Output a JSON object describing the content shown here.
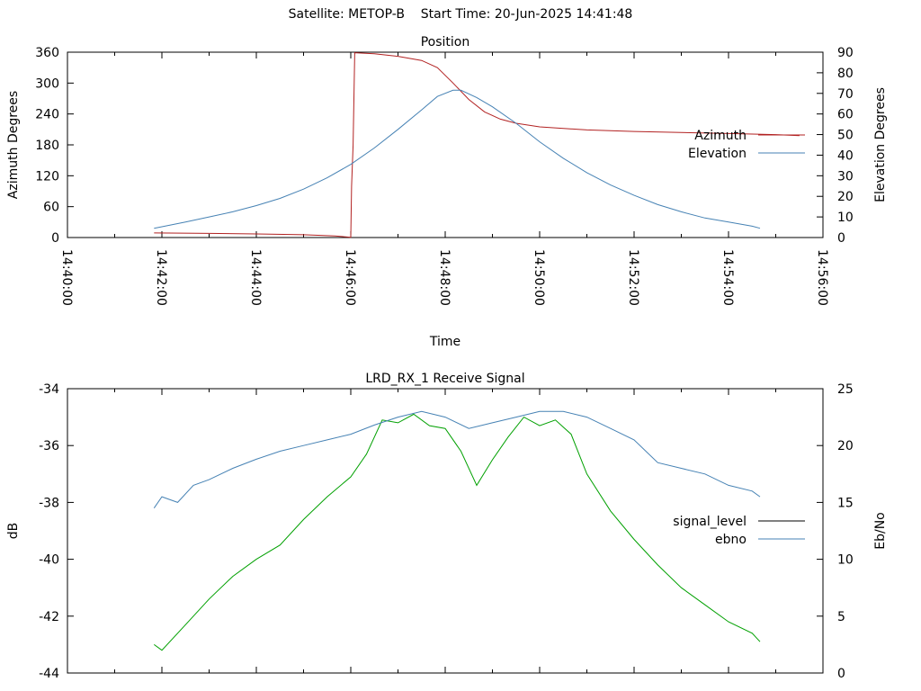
{
  "page": {
    "title": "Satellite: METOP-B    Start Time: 20-Jun-2025 14:41:48"
  },
  "chart_data": [
    {
      "type": "line",
      "title": "Position",
      "xlabel": "Time",
      "ylabel": "Azimuth Degrees",
      "y2label": "Elevation Degrees",
      "xlim": [
        "14:40:00",
        "14:56:00"
      ],
      "ylim": [
        0,
        360
      ],
      "y2lim": [
        0,
        90
      ],
      "x_ticks": [
        "14:40:00",
        "14:42:00",
        "14:44:00",
        "14:46:00",
        "14:48:00",
        "14:50:00",
        "14:52:00",
        "14:54:00",
        "14:56:00"
      ],
      "y_ticks": [
        "0",
        "60",
        "120",
        "180",
        "240",
        "300",
        "360"
      ],
      "y2_ticks": [
        "0",
        "10",
        "20",
        "30",
        "40",
        "50",
        "60",
        "70",
        "80",
        "90"
      ],
      "legend_position": "right",
      "grid": false,
      "series": [
        {
          "name": "Azimuth",
          "axis": "left",
          "color": "#b22222",
          "points": [
            [
              "14:41:50",
              9
            ],
            [
              "14:43:00",
              8
            ],
            [
              "14:44:00",
              7
            ],
            [
              "14:45:00",
              5.5
            ],
            [
              "14:45:40",
              3
            ],
            [
              "14:46:00",
              0.5
            ],
            [
              "14:46:01",
              100
            ],
            [
              "14:46:03",
              180
            ],
            [
              "14:46:05",
              359
            ],
            [
              "14:46:30",
              357
            ],
            [
              "14:47:00",
              352
            ],
            [
              "14:47:30",
              344
            ],
            [
              "14:47:50",
              330
            ],
            [
              "14:48:10",
              300
            ],
            [
              "14:48:30",
              268
            ],
            [
              "14:48:50",
              244
            ],
            [
              "14:49:10",
              230
            ],
            [
              "14:49:30",
              222
            ],
            [
              "14:50:00",
              215
            ],
            [
              "14:51:00",
              209
            ],
            [
              "14:52:00",
              206
            ],
            [
              "14:53:00",
              204
            ],
            [
              "14:54:00",
              202
            ],
            [
              "14:55:00",
              200
            ],
            [
              "14:55:30",
              198
            ]
          ]
        },
        {
          "name": "Elevation",
          "axis": "right",
          "color": "#4682b4",
          "points": [
            [
              "14:41:50",
              4.5
            ],
            [
              "14:42:30",
              7.5
            ],
            [
              "14:43:00",
              10
            ],
            [
              "14:43:30",
              12.5
            ],
            [
              "14:44:00",
              15.5
            ],
            [
              "14:44:30",
              19
            ],
            [
              "14:45:00",
              23.5
            ],
            [
              "14:45:30",
              29
            ],
            [
              "14:46:00",
              35.5
            ],
            [
              "14:46:30",
              43.5
            ],
            [
              "14:47:00",
              52.5
            ],
            [
              "14:47:30",
              62
            ],
            [
              "14:47:50",
              68.5
            ],
            [
              "14:48:10",
              71.5
            ],
            [
              "14:48:20",
              71.5
            ],
            [
              "14:48:40",
              68
            ],
            [
              "14:49:00",
              63.5
            ],
            [
              "14:49:30",
              55.5
            ],
            [
              "14:50:00",
              46.5
            ],
            [
              "14:50:30",
              38.5
            ],
            [
              "14:51:00",
              31.5
            ],
            [
              "14:51:30",
              25.5
            ],
            [
              "14:52:00",
              20.5
            ],
            [
              "14:52:30",
              16
            ],
            [
              "14:53:00",
              12.5
            ],
            [
              "14:53:30",
              9.5
            ],
            [
              "14:54:00",
              7.5
            ],
            [
              "14:54:30",
              5.5
            ],
            [
              "14:54:40",
              4.5
            ]
          ]
        }
      ]
    },
    {
      "type": "line",
      "title": "LRD_RX_1 Receive Signal",
      "ylabel": "dB",
      "y2label": "Eb/No",
      "xlim": [
        "14:40:00",
        "14:56:00"
      ],
      "ylim": [
        -44,
        -34
      ],
      "y2lim": [
        0,
        25
      ],
      "y_ticks": [
        "-44",
        "-42",
        "-40",
        "-38",
        "-36",
        "-34"
      ],
      "y2_ticks": [
        "0",
        "5",
        "10",
        "15",
        "20",
        "25"
      ],
      "legend_position": "right",
      "grid": false,
      "series": [
        {
          "name": "signal_level",
          "axis": "left",
          "color": "#00a000",
          "legend_swatch_color": "#000000",
          "points": [
            [
              "14:41:50",
              -43.0
            ],
            [
              "14:42:00",
              -43.2
            ],
            [
              "14:42:30",
              -42.3
            ],
            [
              "14:43:00",
              -41.4
            ],
            [
              "14:43:30",
              -40.6
            ],
            [
              "14:44:00",
              -40.0
            ],
            [
              "14:44:30",
              -39.5
            ],
            [
              "14:45:00",
              -38.6
            ],
            [
              "14:45:30",
              -37.8
            ],
            [
              "14:46:00",
              -37.1
            ],
            [
              "14:46:20",
              -36.3
            ],
            [
              "14:46:40",
              -35.1
            ],
            [
              "14:47:00",
              -35.2
            ],
            [
              "14:47:20",
              -34.9
            ],
            [
              "14:47:40",
              -35.3
            ],
            [
              "14:48:00",
              -35.4
            ],
            [
              "14:48:20",
              -36.2
            ],
            [
              "14:48:40",
              -37.4
            ],
            [
              "14:49:00",
              -36.5
            ],
            [
              "14:49:20",
              -35.7
            ],
            [
              "14:49:40",
              -35.0
            ],
            [
              "14:50:00",
              -35.3
            ],
            [
              "14:50:20",
              -35.1
            ],
            [
              "14:50:40",
              -35.6
            ],
            [
              "14:51:00",
              -37.0
            ],
            [
              "14:51:30",
              -38.3
            ],
            [
              "14:52:00",
              -39.3
            ],
            [
              "14:52:30",
              -40.2
            ],
            [
              "14:53:00",
              -41.0
            ],
            [
              "14:53:30",
              -41.6
            ],
            [
              "14:54:00",
              -42.2
            ],
            [
              "14:54:30",
              -42.6
            ],
            [
              "14:54:40",
              -42.9
            ]
          ]
        },
        {
          "name": "ebno",
          "axis": "right",
          "color": "#4682b4",
          "points": [
            [
              "14:41:50",
              14.5
            ],
            [
              "14:42:00",
              15.5
            ],
            [
              "14:42:20",
              15.0
            ],
            [
              "14:42:40",
              16.5
            ],
            [
              "14:43:00",
              17.0
            ],
            [
              "14:43:30",
              18.0
            ],
            [
              "14:44:00",
              18.8
            ],
            [
              "14:44:30",
              19.5
            ],
            [
              "14:45:00",
              20.0
            ],
            [
              "14:45:30",
              20.5
            ],
            [
              "14:46:00",
              21.0
            ],
            [
              "14:46:30",
              21.8
            ],
            [
              "14:47:00",
              22.5
            ],
            [
              "14:47:30",
              23.0
            ],
            [
              "14:48:00",
              22.5
            ],
            [
              "14:48:30",
              21.5
            ],
            [
              "14:49:00",
              22.0
            ],
            [
              "14:49:30",
              22.5
            ],
            [
              "14:50:00",
              23.0
            ],
            [
              "14:50:30",
              23.0
            ],
            [
              "14:51:00",
              22.5
            ],
            [
              "14:51:30",
              21.5
            ],
            [
              "14:52:00",
              20.5
            ],
            [
              "14:52:30",
              18.5
            ],
            [
              "14:53:00",
              18.0
            ],
            [
              "14:53:30",
              17.5
            ],
            [
              "14:54:00",
              16.5
            ],
            [
              "14:54:30",
              16.0
            ],
            [
              "14:54:40",
              15.5
            ]
          ]
        }
      ]
    }
  ]
}
